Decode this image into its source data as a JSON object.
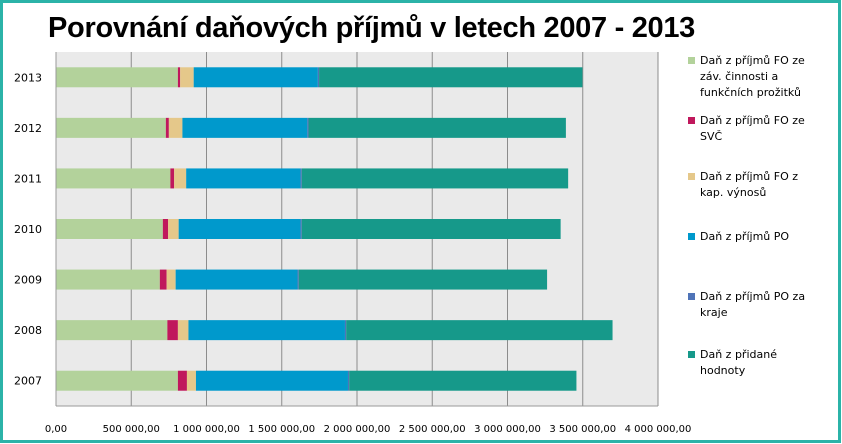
{
  "colors": {
    "frame": "#2bb3a8",
    "plot_bg": "#eaeaea",
    "series": [
      "#b3d29b",
      "#c0185c",
      "#e5c88a",
      "#0099cc",
      "#4f74b8",
      "#16998a"
    ]
  },
  "chart_data": {
    "type": "bar",
    "orientation": "horizontal",
    "stacked": true,
    "title": "Porovnání daňových příjmů v letech 2007 - 2013",
    "categories": [
      "2013",
      "2012",
      "2011",
      "2010",
      "2009",
      "2008",
      "2007"
    ],
    "series": [
      {
        "name": "Daň z příjmů FO ze záv. činnosti a funkčních požitků",
        "values": [
          810000,
          730000,
          760000,
          710000,
          690000,
          740000,
          810000
        ]
      },
      {
        "name": "Daň z příjmů FO ze SVČ",
        "values": [
          15000,
          20000,
          25000,
          35000,
          45000,
          70000,
          60000
        ]
      },
      {
        "name": "Daň z příjmů FO z kap. výnosů",
        "values": [
          90000,
          90000,
          80000,
          70000,
          60000,
          70000,
          60000
        ]
      },
      {
        "name": "Daň z příjmů PO",
        "values": [
          825000,
          830000,
          760000,
          810000,
          810000,
          1040000,
          1010000
        ]
      },
      {
        "name": "Daň z příjmů PO za kraje",
        "values": [
          8000,
          8000,
          8000,
          8000,
          8000,
          8000,
          8000
        ]
      },
      {
        "name": "Daň z přidané hodnoty",
        "values": [
          1750000,
          1710000,
          1770000,
          1720000,
          1650000,
          1770000,
          1510000
        ]
      }
    ],
    "xlim": [
      0,
      4000000
    ],
    "x_ticks": [
      "0,00",
      "500 000,00",
      "1 000 000,00",
      "1 500 000,00",
      "2 000 000,00",
      "2 500 000,00",
      "3 000 000,00",
      "3 500 000,00",
      "4 000 000,00"
    ],
    "x_tick_values": [
      0,
      500000,
      1000000,
      1500000,
      2000000,
      2500000,
      3000000,
      3500000,
      4000000
    ],
    "grid": true,
    "legend_position": "right",
    "legend_entries": [
      [
        "Daň z příjmů FO ze",
        "záv. činnosti a",
        "funkčních prožitků"
      ],
      [
        "Daň z příjmů FO ze",
        "SVČ"
      ],
      [
        "Daň z příjmů FO z",
        "kap. výnosů"
      ],
      [
        "Daň z příjmů PO"
      ],
      [
        "Daň z příjmů PO za",
        "kraje"
      ],
      [
        "Daň z přidané",
        "hodnoty"
      ]
    ]
  }
}
